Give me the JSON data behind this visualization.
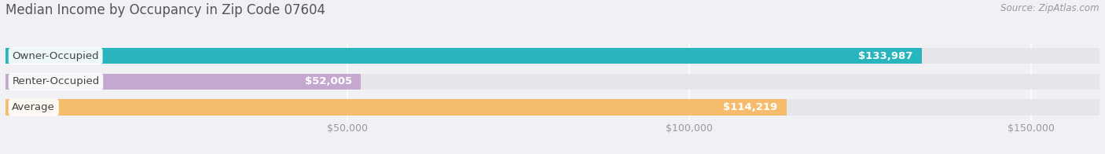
{
  "title": "Median Income by Occupancy in Zip Code 07604",
  "source": "Source: ZipAtlas.com",
  "categories": [
    "Owner-Occupied",
    "Renter-Occupied",
    "Average"
  ],
  "values": [
    133987,
    52005,
    114219
  ],
  "labels": [
    "$133,987",
    "$52,005",
    "$114,219"
  ],
  "bar_colors": [
    "#29b5be",
    "#c4a8d0",
    "#f5bc6e"
  ],
  "bar_bg_color": "#e5e5ea",
  "xlim": [
    0,
    160000
  ],
  "xticks": [
    50000,
    100000,
    150000
  ],
  "xtick_labels": [
    "$50,000",
    "$100,000",
    "$150,000"
  ],
  "title_fontsize": 12,
  "source_fontsize": 8.5,
  "label_fontsize": 9.5,
  "category_fontsize": 9.5,
  "tick_fontsize": 9,
  "background_color": "#f0f0f5",
  "bar_height": 0.62,
  "value_label_color_inside": "white",
  "value_label_color_outside": "#888888"
}
